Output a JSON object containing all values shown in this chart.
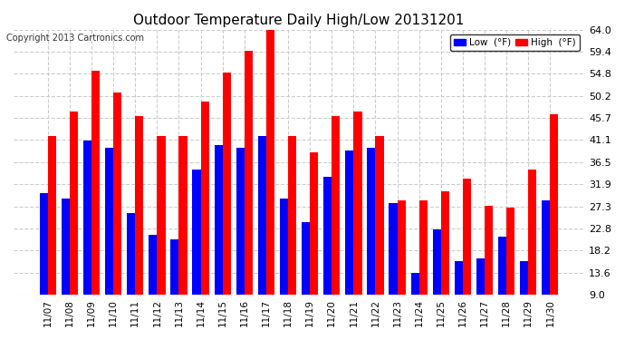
{
  "title": "Outdoor Temperature Daily High/Low 20131201",
  "copyright": "Copyright 2013 Cartronics.com",
  "dates": [
    "11/07",
    "11/08",
    "11/09",
    "11/10",
    "11/11",
    "11/12",
    "11/13",
    "11/14",
    "11/15",
    "11/16",
    "11/17",
    "11/18",
    "11/19",
    "11/20",
    "11/21",
    "11/22",
    "11/23",
    "11/24",
    "11/25",
    "11/26",
    "11/27",
    "11/28",
    "11/29",
    "11/30"
  ],
  "high": [
    42.0,
    47.0,
    55.5,
    51.0,
    46.0,
    42.0,
    42.0,
    49.0,
    55.0,
    59.5,
    64.0,
    42.0,
    38.5,
    46.0,
    47.0,
    42.0,
    28.5,
    28.5,
    30.5,
    33.0,
    27.5,
    27.0,
    35.0,
    46.5
  ],
  "low": [
    30.0,
    29.0,
    41.0,
    39.5,
    26.0,
    21.5,
    20.5,
    35.0,
    40.0,
    39.5,
    42.0,
    29.0,
    24.0,
    33.5,
    39.0,
    39.5,
    28.0,
    13.5,
    22.5,
    16.0,
    16.5,
    21.0,
    16.0,
    28.5
  ],
  "high_color": "#ff0000",
  "low_color": "#0000ff",
  "bg_color": "#ffffff",
  "plot_bg_color": "#ffffff",
  "grid_color": "#cccccc",
  "ylim_min": 9.0,
  "ylim_max": 64.0,
  "yticks": [
    9.0,
    13.6,
    18.2,
    22.8,
    27.3,
    31.9,
    36.5,
    41.1,
    45.7,
    50.2,
    54.8,
    59.4,
    64.0
  ]
}
